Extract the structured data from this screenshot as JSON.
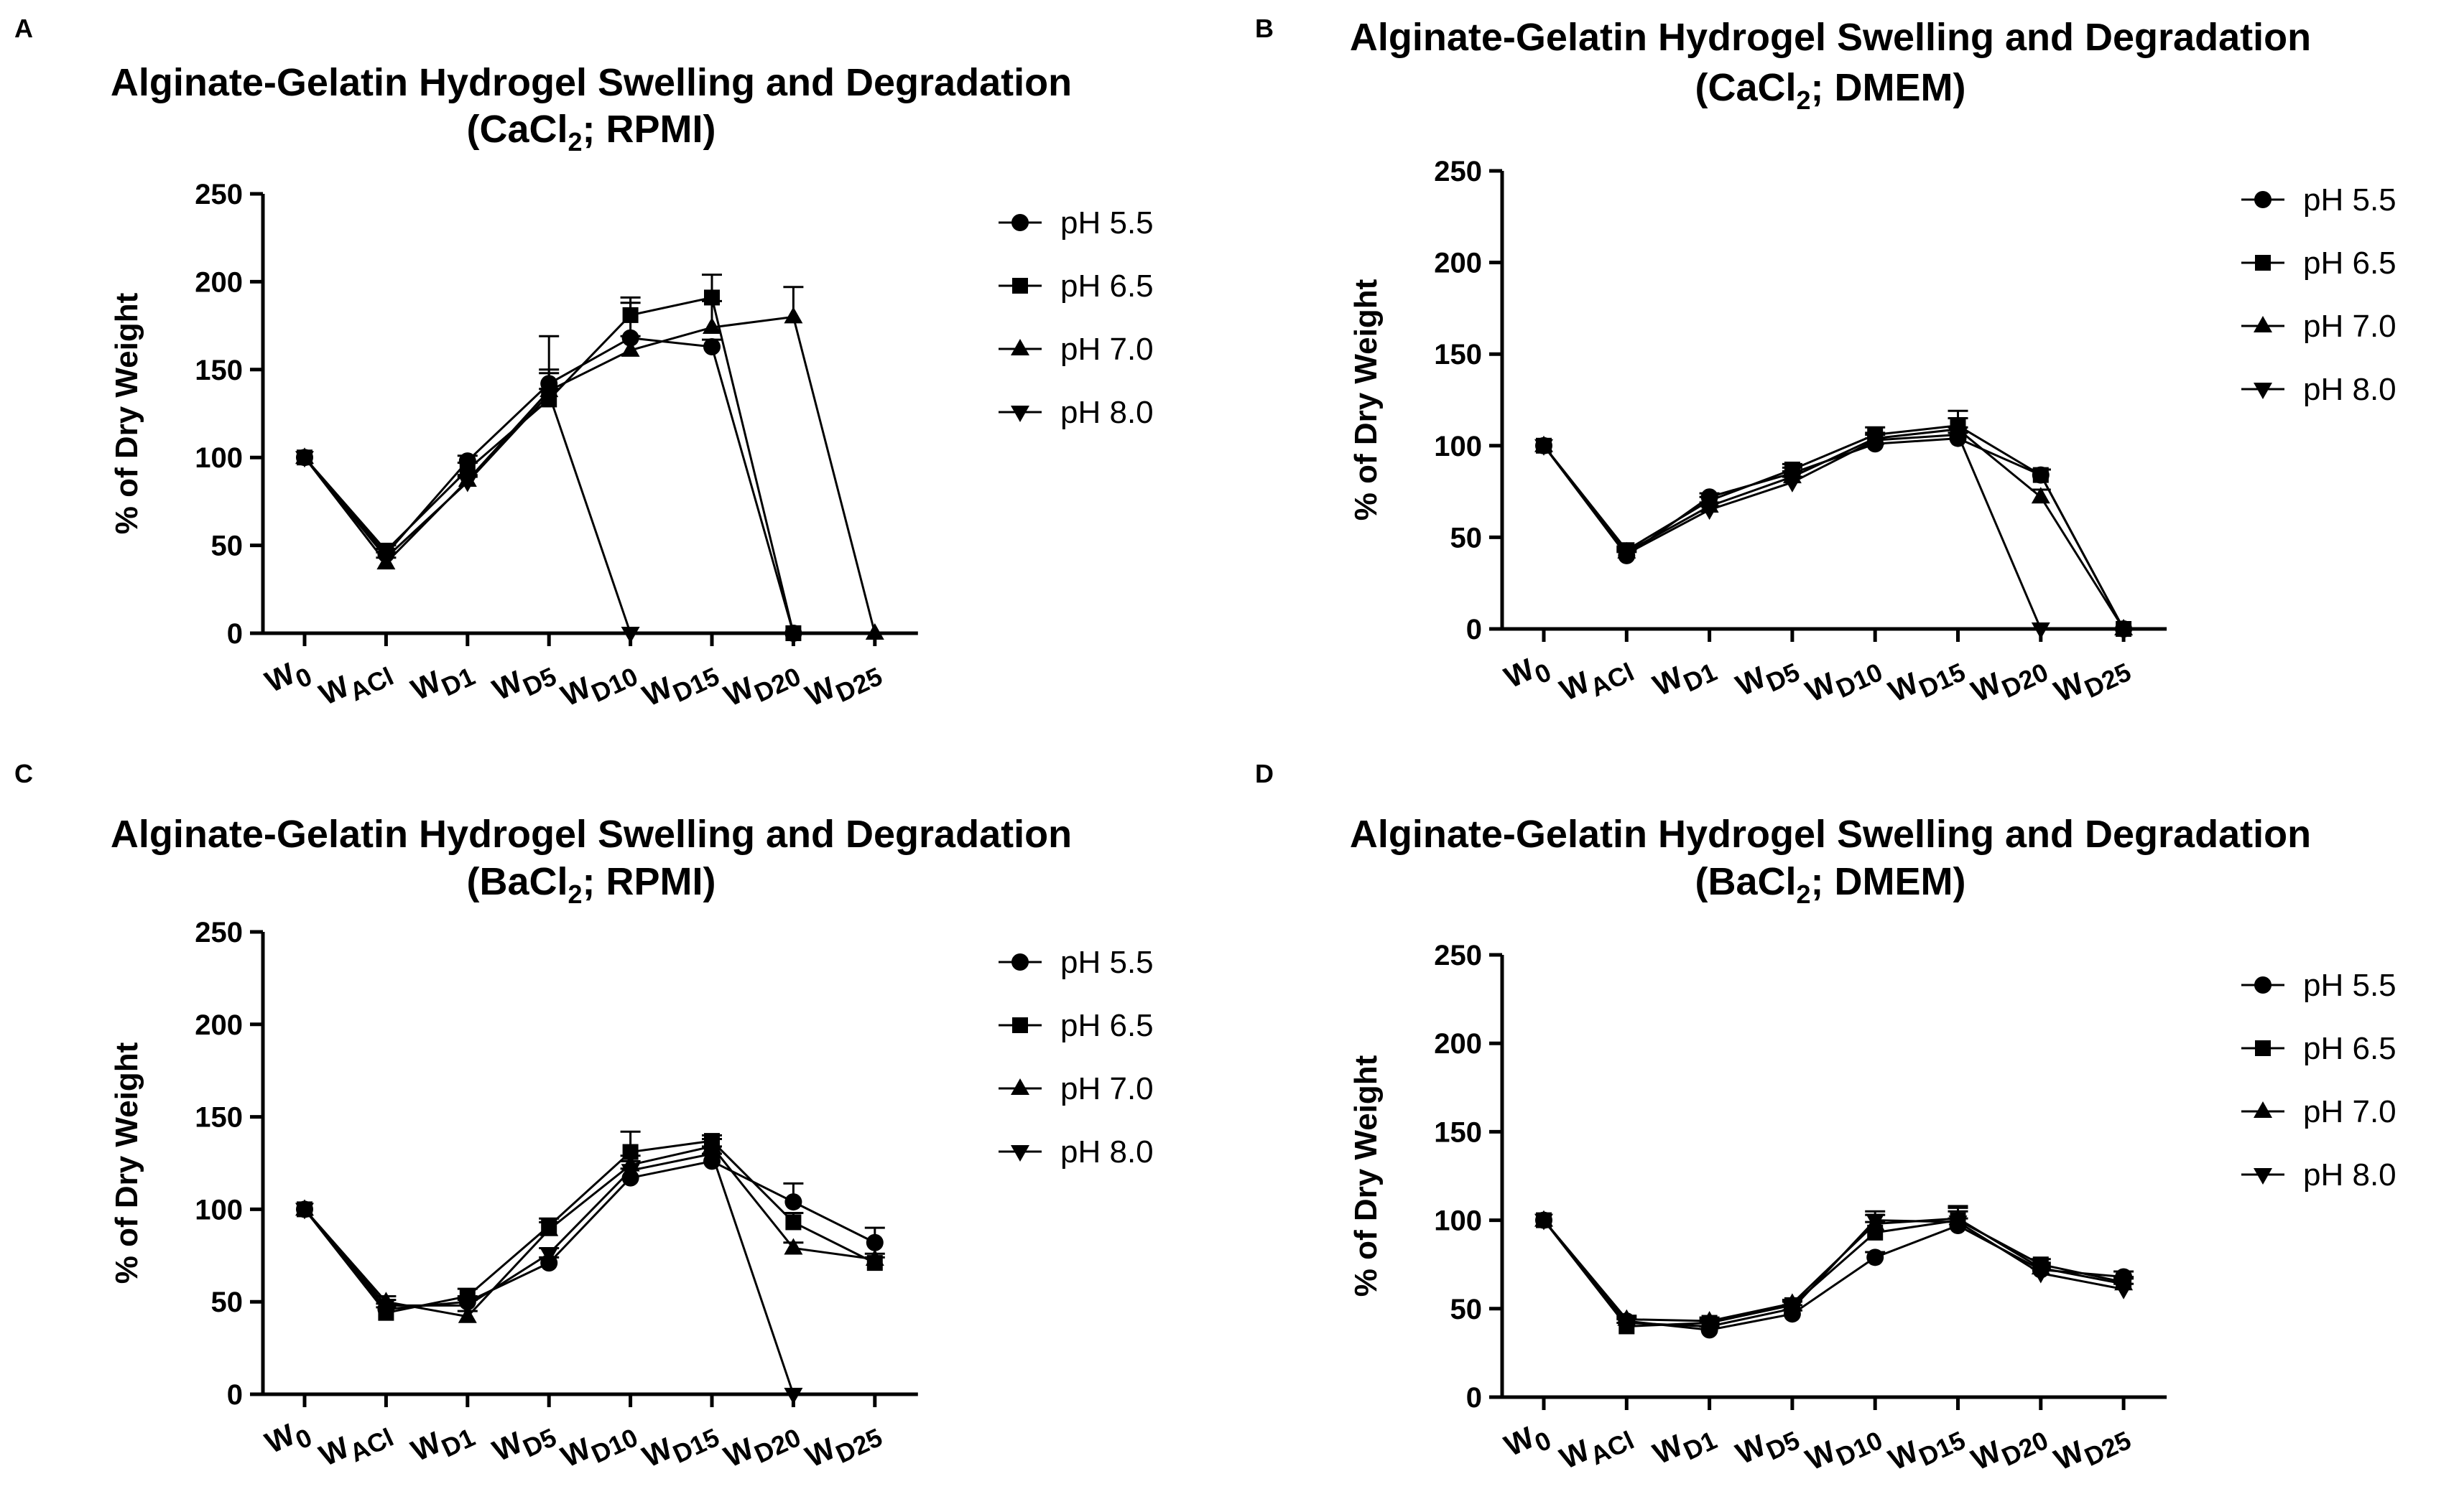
{
  "chart_data": [
    {
      "panel": "A",
      "type": "line",
      "title_main": "Alginate-Gelatin Hydrogel Swelling and Degradation",
      "title_sub": {
        "pre": "(CaCl",
        "sub": "2",
        "post": "; RPMI)"
      },
      "ylabel": "% of Dry Weight",
      "ylim": [
        0,
        250
      ],
      "yticks": [
        "0",
        "50",
        "100",
        "150",
        "200",
        "250"
      ],
      "categories": [
        {
          "base": "W",
          "sub": "0"
        },
        {
          "base": "W",
          "sub": "ACl"
        },
        {
          "base": "W",
          "sub": "D1"
        },
        {
          "base": "W",
          "sub": "D5"
        },
        {
          "base": "W",
          "sub": "D10"
        },
        {
          "base": "W",
          "sub": "D15"
        },
        {
          "base": "W",
          "sub": "D20"
        },
        {
          "base": "W",
          "sub": "D25"
        }
      ],
      "series": [
        {
          "name": "pH 5.5",
          "marker": "circle",
          "values": [
            100,
            45,
            98,
            142,
            168,
            163,
            0,
            null
          ],
          "errors": [
            0,
            3,
            3,
            6,
            20,
            4,
            0,
            null
          ]
        },
        {
          "name": "pH 6.5",
          "marker": "square",
          "values": [
            100,
            47,
            93,
            133,
            181,
            191,
            0,
            null
          ],
          "errors": [
            0,
            3,
            4,
            6,
            10,
            13,
            0,
            null
          ]
        },
        {
          "name": "pH 7.0",
          "marker": "triangle-up",
          "values": [
            100,
            40,
            87,
            138,
            161,
            174,
            180,
            0
          ],
          "errors": [
            0,
            3,
            3,
            12,
            8,
            15,
            17,
            0
          ]
        },
        {
          "name": "pH 8.0",
          "marker": "triangle-down",
          "values": [
            100,
            43,
            86,
            136,
            0,
            null,
            null,
            null
          ],
          "errors": [
            0,
            3,
            3,
            33,
            0,
            null,
            null,
            null
          ]
        }
      ]
    },
    {
      "panel": "B",
      "type": "line",
      "title_main": "Alginate-Gelatin Hydrogel Swelling and Degradation",
      "title_sub": {
        "pre": "(CaCl",
        "sub": "2",
        "post": "; DMEM)"
      },
      "ylabel": "% of Dry Weight",
      "ylim": [
        0,
        250
      ],
      "yticks": [
        "0",
        "50",
        "100",
        "150",
        "200",
        "250"
      ],
      "categories": [
        {
          "base": "W",
          "sub": "0"
        },
        {
          "base": "W",
          "sub": "ACl"
        },
        {
          "base": "W",
          "sub": "D1"
        },
        {
          "base": "W",
          "sub": "D5"
        },
        {
          "base": "W",
          "sub": "D10"
        },
        {
          "base": "W",
          "sub": "D15"
        },
        {
          "base": "W",
          "sub": "D20"
        },
        {
          "base": "W",
          "sub": "D25"
        }
      ],
      "series": [
        {
          "name": "pH 5.5",
          "marker": "circle",
          "values": [
            100,
            40,
            72,
            85,
            101,
            104,
            84,
            0
          ],
          "errors": [
            0,
            2,
            2,
            3,
            3,
            3,
            3,
            0
          ]
        },
        {
          "name": "pH 6.5",
          "marker": "square",
          "values": [
            100,
            43,
            70,
            87,
            106,
            111,
            84,
            0
          ],
          "errors": [
            0,
            2,
            2,
            3,
            4,
            8,
            3,
            0
          ]
        },
        {
          "name": "pH 7.0",
          "marker": "triangle-up",
          "values": [
            100,
            42,
            67,
            83,
            104,
            109,
            72,
            0
          ],
          "errors": [
            0,
            2,
            2,
            3,
            3,
            6,
            4,
            0
          ]
        },
        {
          "name": "pH 8.0",
          "marker": "triangle-down",
          "values": [
            100,
            41,
            65,
            80,
            103,
            106,
            0,
            null
          ],
          "errors": [
            0,
            2,
            2,
            3,
            3,
            4,
            0,
            null
          ]
        }
      ]
    },
    {
      "panel": "C",
      "type": "line",
      "title_main": "Alginate-Gelatin Hydrogel Swelling and Degradation",
      "title_sub": {
        "pre": "(BaCl",
        "sub": "2",
        "post": "; RPMI)"
      },
      "ylabel": "% of Dry Weight",
      "ylim": [
        0,
        250
      ],
      "yticks": [
        "0",
        "50",
        "100",
        "150",
        "200",
        "250"
      ],
      "categories": [
        {
          "base": "W",
          "sub": "0"
        },
        {
          "base": "W",
          "sub": "ACl"
        },
        {
          "base": "W",
          "sub": "D1"
        },
        {
          "base": "W",
          "sub": "D5"
        },
        {
          "base": "W",
          "sub": "D10"
        },
        {
          "base": "W",
          "sub": "D15"
        },
        {
          "base": "W",
          "sub": "D20"
        },
        {
          "base": "W",
          "sub": "D25"
        }
      ],
      "series": [
        {
          "name": "pH 5.5",
          "marker": "circle",
          "values": [
            100,
            46,
            50,
            71,
            117,
            126,
            104,
            82
          ],
          "errors": [
            0,
            3,
            3,
            3,
            5,
            4,
            10,
            8
          ]
        },
        {
          "name": "pH 6.5",
          "marker": "square",
          "values": [
            100,
            44,
            53,
            91,
            131,
            137,
            93,
            71
          ],
          "errors": [
            0,
            3,
            4,
            4,
            11,
            3,
            5,
            3
          ]
        },
        {
          "name": "pH 7.0",
          "marker": "triangle-up",
          "values": [
            100,
            50,
            42,
            89,
            124,
            134,
            79,
            73
          ],
          "errors": [
            0,
            3,
            3,
            4,
            5,
            4,
            3,
            3
          ]
        },
        {
          "name": "pH 8.0",
          "marker": "triangle-down",
          "values": [
            100,
            48,
            48,
            76,
            121,
            130,
            0,
            null
          ],
          "errors": [
            0,
            3,
            3,
            3,
            5,
            4,
            0,
            null
          ]
        }
      ]
    },
    {
      "panel": "D",
      "type": "line",
      "title_main": "Alginate-Gelatin Hydrogel Swelling and Degradation",
      "title_sub": {
        "pre": "(BaCl",
        "sub": "2",
        "post": "; DMEM)"
      },
      "ylabel": "% of Dry Weight",
      "ylim": [
        0,
        250
      ],
      "yticks": [
        "0",
        "50",
        "100",
        "150",
        "200",
        "250"
      ],
      "categories": [
        {
          "base": "W",
          "sub": "0"
        },
        {
          "base": "W",
          "sub": "ACl"
        },
        {
          "base": "W",
          "sub": "D1"
        },
        {
          "base": "W",
          "sub": "D5"
        },
        {
          "base": "W",
          "sub": "D10"
        },
        {
          "base": "W",
          "sub": "D15"
        },
        {
          "base": "W",
          "sub": "D20"
        },
        {
          "base": "W",
          "sub": "D25"
        }
      ],
      "series": [
        {
          "name": "pH 5.5",
          "marker": "circle",
          "values": [
            100,
            43,
            38,
            47,
            79,
            97,
            72,
            68
          ],
          "errors": [
            0,
            2,
            2,
            2,
            3,
            4,
            3,
            3
          ]
        },
        {
          "name": "pH 6.5",
          "marker": "square",
          "values": [
            100,
            40,
            42,
            52,
            93,
            100,
            75,
            65
          ],
          "errors": [
            0,
            2,
            2,
            2,
            6,
            5,
            3,
            3
          ]
        },
        {
          "name": "pH 7.0",
          "marker": "triangle-up",
          "values": [
            100,
            44,
            43,
            53,
            98,
            101,
            73,
            64
          ],
          "errors": [
            0,
            2,
            2,
            2,
            5,
            6,
            3,
            3
          ]
        },
        {
          "name": "pH 8.0",
          "marker": "triangle-down",
          "values": [
            100,
            42,
            40,
            50,
            100,
            99,
            70,
            61
          ],
          "errors": [
            0,
            2,
            2,
            2,
            5,
            9,
            3,
            3
          ]
        }
      ]
    }
  ]
}
